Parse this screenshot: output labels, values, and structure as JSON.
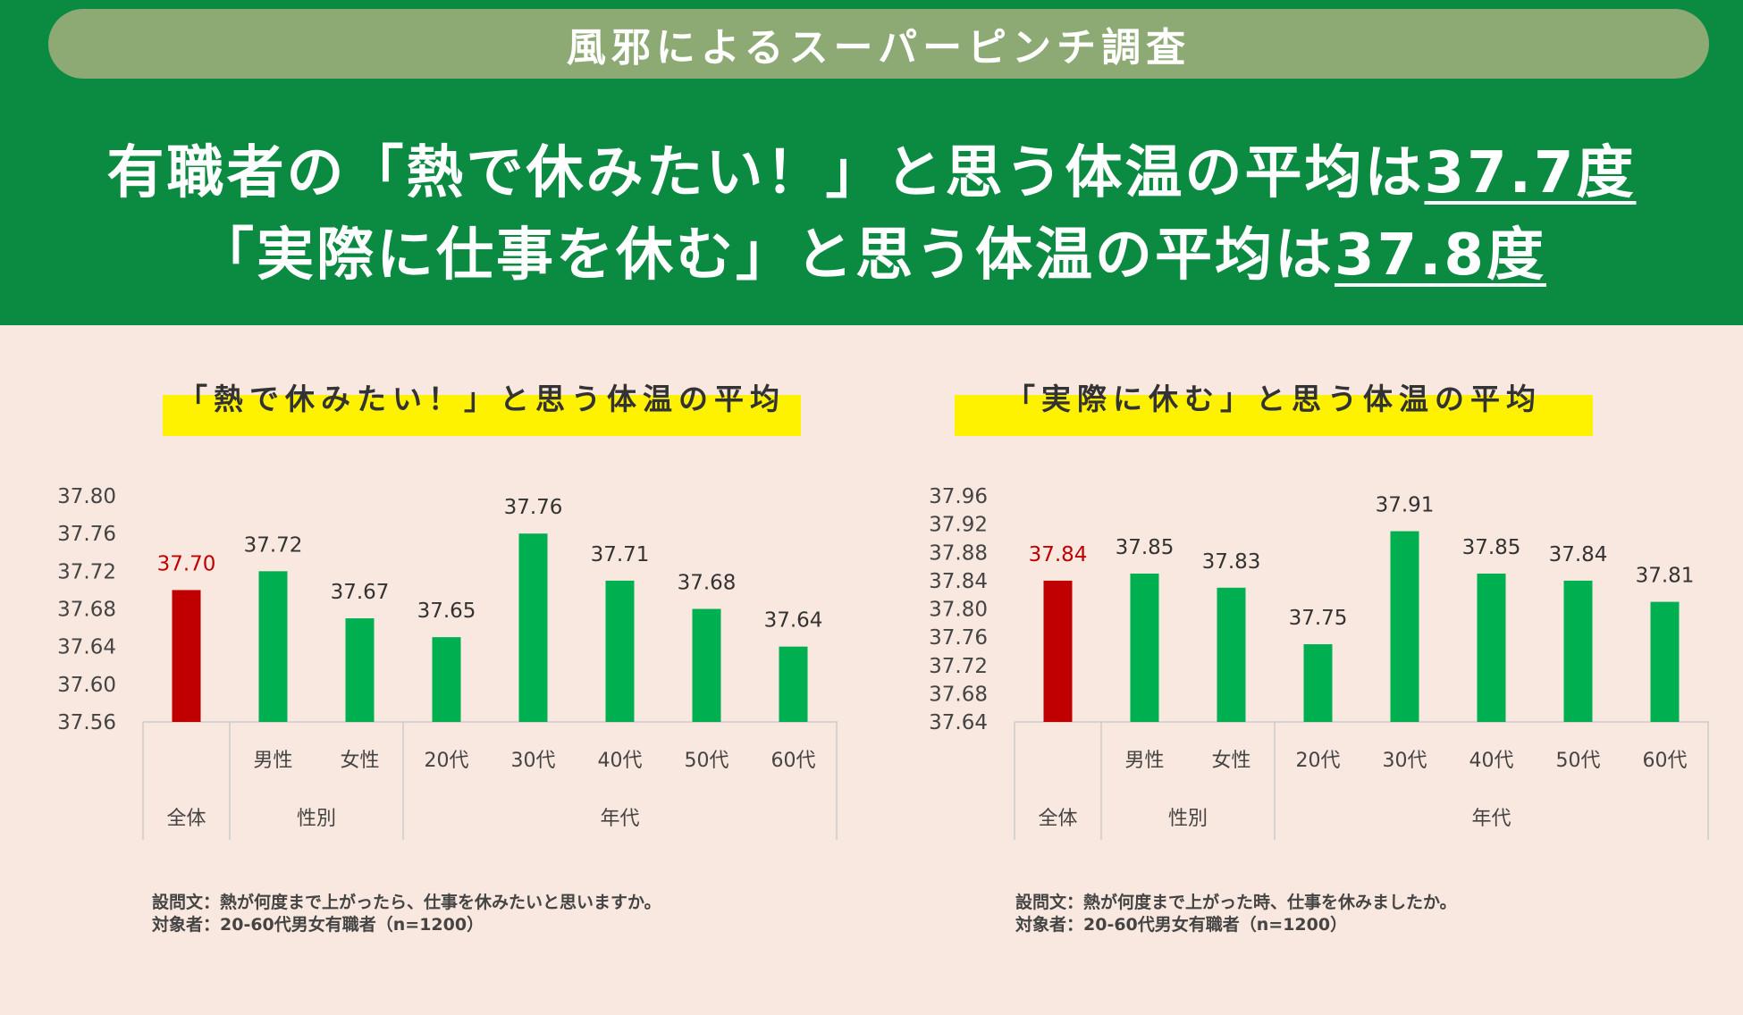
{
  "header": {
    "pill_title": "風邪によるスーパーピンチ調査",
    "headline1_text": "有職者の「熱で休みたい！」と思う体温の平均は",
    "headline1_value": "37.7度",
    "headline2_text": "「実際に仕事を休む」と思う体温の平均は",
    "headline2_value": "37.8度"
  },
  "colors": {
    "header_bg": "#0b8a42",
    "pill_bg": "#8eaa74",
    "page_bg": "#f9e8df",
    "highlight": "#fff200",
    "bar_total": "#c00000",
    "bar_other": "#00b050",
    "label_total": "#c00000"
  },
  "charts": [
    {
      "title": "「熱で休みたい！」と思う体温の平均"
    },
    {
      "title": "「実際に休む」と思う体温の平均"
    }
  ],
  "chart_data": [
    {
      "type": "bar",
      "title": "「熱で休みたい！」と思う体温の平均",
      "categories": [
        "全体",
        "男性",
        "女性",
        "20代",
        "30代",
        "40代",
        "50代",
        "60代"
      ],
      "groups": [
        {
          "label": "全体",
          "span": 1
        },
        {
          "label": "性別",
          "span": 2
        },
        {
          "label": "年代",
          "span": 5
        }
      ],
      "values": [
        37.7,
        37.72,
        37.67,
        37.65,
        37.76,
        37.71,
        37.68,
        37.64
      ],
      "value_labels": [
        "37.70",
        "37.72",
        "37.67",
        "37.65",
        "37.76",
        "37.71",
        "37.68",
        "37.64"
      ],
      "ylim": [
        37.56,
        37.8
      ],
      "yticks": [
        "37.80",
        "37.76",
        "37.72",
        "37.68",
        "37.64",
        "37.60",
        "37.56"
      ],
      "grid": false,
      "highlight_index": 0
    },
    {
      "type": "bar",
      "title": "「実際に休む」と思う体温の平均",
      "categories": [
        "全体",
        "男性",
        "女性",
        "20代",
        "30代",
        "40代",
        "50代",
        "60代"
      ],
      "groups": [
        {
          "label": "全体",
          "span": 1
        },
        {
          "label": "性別",
          "span": 2
        },
        {
          "label": "年代",
          "span": 5
        }
      ],
      "values": [
        37.84,
        37.85,
        37.83,
        37.75,
        37.91,
        37.85,
        37.84,
        37.81
      ],
      "value_labels": [
        "37.84",
        "37.85",
        "37.83",
        "37.75",
        "37.91",
        "37.85",
        "37.84",
        "37.81"
      ],
      "ylim": [
        37.64,
        37.96
      ],
      "yticks": [
        "37.96",
        "37.92",
        "37.88",
        "37.84",
        "37.80",
        "37.76",
        "37.72",
        "37.68",
        "37.64"
      ],
      "grid": false,
      "highlight_index": 0
    }
  ],
  "footnotes": [
    {
      "line1": "設問文：熱が何度まで上がったら、仕事を休みたいと思いますか。",
      "line2": "対象者：20-60代男女有職者（n=1200）"
    },
    {
      "line1": "設問文：熱が何度まで上がった時、仕事を休みましたか。",
      "line2": "対象者：20-60代男女有職者（n=1200）"
    }
  ]
}
